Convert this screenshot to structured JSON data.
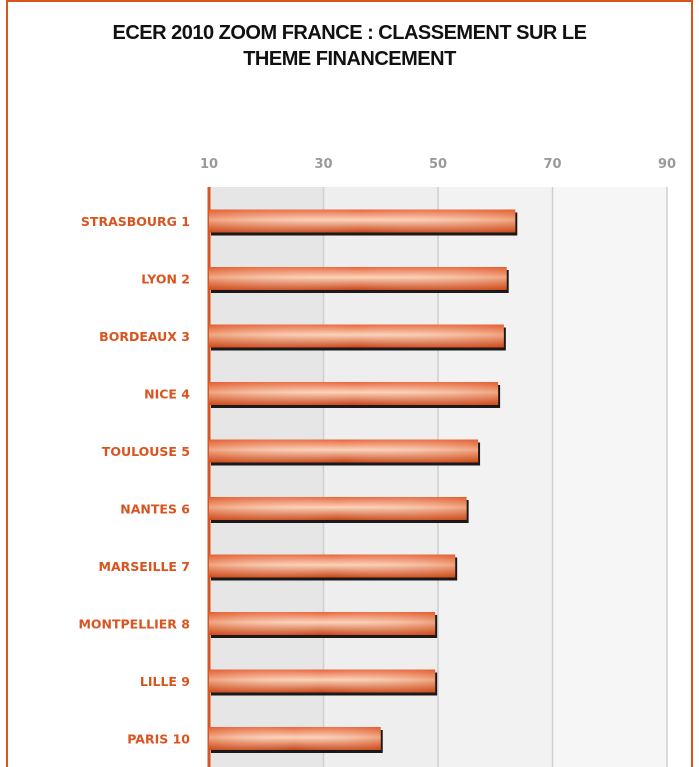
{
  "chart_data": {
    "type": "bar",
    "orientation": "horizontal",
    "title_lines": [
      "ECER 2010 ZOOM FRANCE : CLASSEMENT SUR LE",
      "THEME FINANCEMENT"
    ],
    "categories": [
      "STRASBOURG 1",
      "LYON 2",
      "BORDEAUX 3",
      "NICE 4",
      "TOULOUSE 5",
      "NANTES 6",
      "MARSEILLE 7",
      "MONTPELLIER 8",
      "LILLE 9",
      "PARIS 10"
    ],
    "values": [
      63.5,
      62.0,
      61.5,
      60.5,
      57.0,
      55.0,
      53.0,
      49.5,
      49.5,
      40.0
    ],
    "xlim": [
      10,
      90
    ],
    "xticks": [
      "10",
      "30",
      "50",
      "70",
      "90"
    ],
    "grid": true,
    "bar_color": "#d9541e",
    "label_color": "#d9541e"
  }
}
